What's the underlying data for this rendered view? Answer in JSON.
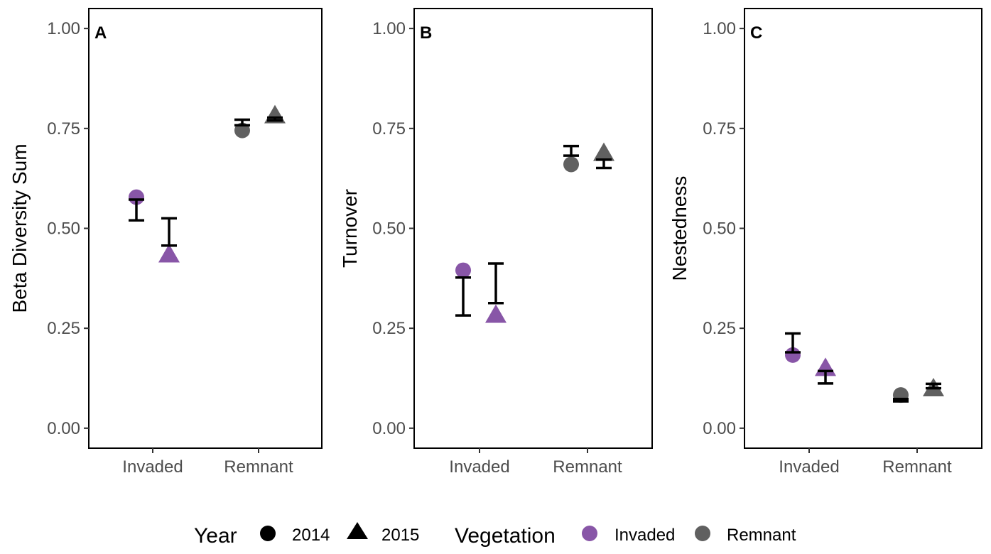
{
  "colors": {
    "Invaded": "#8856a7",
    "Remnant": "#606060"
  },
  "legend": {
    "year_title": "Year",
    "year_items": [
      {
        "label": "2014",
        "shape": "circle"
      },
      {
        "label": "2015",
        "shape": "triangle"
      }
    ],
    "vegetation_title": "Vegetation",
    "vegetation_items": [
      {
        "label": "Invaded",
        "color": "#8856a7"
      },
      {
        "label": "Remnant",
        "color": "#606060"
      }
    ],
    "position": "bottom"
  },
  "chart_data": [
    {
      "type": "scatter",
      "panel_label": "A",
      "ylabel": "Beta Diversity Sum",
      "xlabel": "",
      "categories": [
        "Invaded",
        "Remnant"
      ],
      "yticks": [
        "0.00",
        "0.25",
        "0.50",
        "0.75",
        "1.00"
      ],
      "ylim": [
        -0.05,
        1.05
      ],
      "grid": false,
      "points": [
        {
          "vegetation": "Invaded",
          "year": "2014",
          "value": 0.578
        },
        {
          "vegetation": "Invaded",
          "year": "2015",
          "value": 0.436
        },
        {
          "vegetation": "Remnant",
          "year": "2014",
          "value": 0.745
        },
        {
          "vegetation": "Remnant",
          "year": "2015",
          "value": 0.784
        }
      ],
      "errorbars": [
        {
          "vegetation": "Invaded",
          "year": "2014",
          "low": 0.52,
          "high": 0.572
        },
        {
          "vegetation": "Invaded",
          "year": "2015",
          "low": 0.457,
          "high": 0.525
        },
        {
          "vegetation": "Remnant",
          "year": "2014",
          "low": 0.758,
          "high": 0.772
        },
        {
          "vegetation": "Remnant",
          "year": "2015",
          "low": 0.77,
          "high": 0.777
        }
      ]
    },
    {
      "type": "scatter",
      "panel_label": "B",
      "ylabel": "Turnover",
      "xlabel": "",
      "categories": [
        "Invaded",
        "Remnant"
      ],
      "yticks": [
        "0.00",
        "0.25",
        "0.50",
        "0.75",
        "1.00"
      ],
      "ylim": [
        -0.05,
        1.05
      ],
      "grid": false,
      "points": [
        {
          "vegetation": "Invaded",
          "year": "2014",
          "value": 0.395
        },
        {
          "vegetation": "Invaded",
          "year": "2015",
          "value": 0.285
        },
        {
          "vegetation": "Remnant",
          "year": "2014",
          "value": 0.66
        },
        {
          "vegetation": "Remnant",
          "year": "2015",
          "value": 0.69
        }
      ],
      "errorbars": [
        {
          "vegetation": "Invaded",
          "year": "2014",
          "low": 0.282,
          "high": 0.377
        },
        {
          "vegetation": "Invaded",
          "year": "2015",
          "low": 0.313,
          "high": 0.412
        },
        {
          "vegetation": "Remnant",
          "year": "2014",
          "low": 0.682,
          "high": 0.706
        },
        {
          "vegetation": "Remnant",
          "year": "2015",
          "low": 0.651,
          "high": 0.672
        }
      ]
    },
    {
      "type": "scatter",
      "panel_label": "C",
      "ylabel": "Nestedness",
      "xlabel": "",
      "categories": [
        "Invaded",
        "Remnant"
      ],
      "yticks": [
        "0.00",
        "0.25",
        "0.50",
        "0.75",
        "1.00"
      ],
      "ylim": [
        -0.05,
        1.05
      ],
      "grid": false,
      "points": [
        {
          "vegetation": "Invaded",
          "year": "2014",
          "value": 0.183
        },
        {
          "vegetation": "Invaded",
          "year": "2015",
          "value": 0.152
        },
        {
          "vegetation": "Remnant",
          "year": "2014",
          "value": 0.083
        },
        {
          "vegetation": "Remnant",
          "year": "2015",
          "value": 0.101
        }
      ],
      "errorbars": [
        {
          "vegetation": "Invaded",
          "year": "2014",
          "low": 0.19,
          "high": 0.237
        },
        {
          "vegetation": "Invaded",
          "year": "2015",
          "low": 0.112,
          "high": 0.143
        },
        {
          "vegetation": "Remnant",
          "year": "2014",
          "low": 0.067,
          "high": 0.073
        },
        {
          "vegetation": "Remnant",
          "year": "2015",
          "low": 0.1,
          "high": 0.111
        }
      ]
    }
  ]
}
